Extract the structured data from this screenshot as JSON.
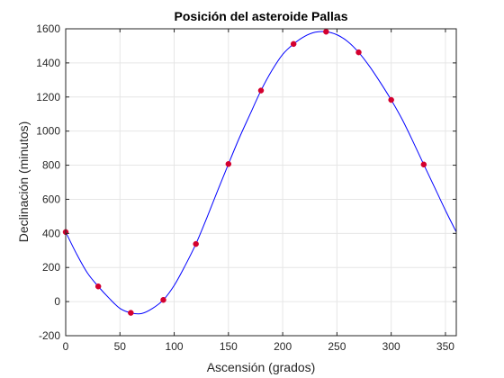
{
  "chart_data": {
    "type": "scatter",
    "title": "Posición del asteroide Pallas",
    "xlabel": "Ascensión (grados)",
    "ylabel": "Declinación (minutos)",
    "xlim": [
      0,
      360
    ],
    "ylim": [
      -200,
      1600
    ],
    "x_ticks": [
      0,
      50,
      100,
      150,
      200,
      250,
      300,
      350
    ],
    "y_ticks": [
      -200,
      0,
      200,
      400,
      600,
      800,
      1000,
      1200,
      1400,
      1600
    ],
    "grid": true,
    "legend": "none",
    "series": [
      {
        "kind": "points",
        "marker": "circle",
        "color": "#d4002e",
        "x": [
          0,
          30,
          60,
          90,
          120,
          150,
          180,
          210,
          240,
          270,
          300,
          330
        ],
        "y": [
          408,
          89,
          -66,
          10,
          338,
          807,
          1238,
          1511,
          1583,
          1462,
          1183,
          804
        ]
      },
      {
        "kind": "fitted-curve",
        "color": "#0000ff",
        "x": [
          0,
          10,
          20,
          30,
          40,
          50,
          60,
          70,
          80,
          90,
          100,
          110,
          120,
          130,
          140,
          150,
          160,
          170,
          180,
          190,
          200,
          210,
          220,
          230,
          240,
          250,
          260,
          270,
          280,
          290,
          300,
          310,
          320,
          330,
          340,
          350,
          360
        ],
        "y": [
          408,
          280,
          168,
          89,
          20,
          -40,
          -66,
          -70,
          -40,
          10,
          95,
          210,
          338,
          490,
          650,
          807,
          960,
          1100,
          1238,
          1355,
          1450,
          1511,
          1555,
          1580,
          1583,
          1565,
          1525,
          1462,
          1380,
          1285,
          1183,
          1070,
          940,
          804,
          670,
          535,
          408
        ]
      }
    ]
  }
}
